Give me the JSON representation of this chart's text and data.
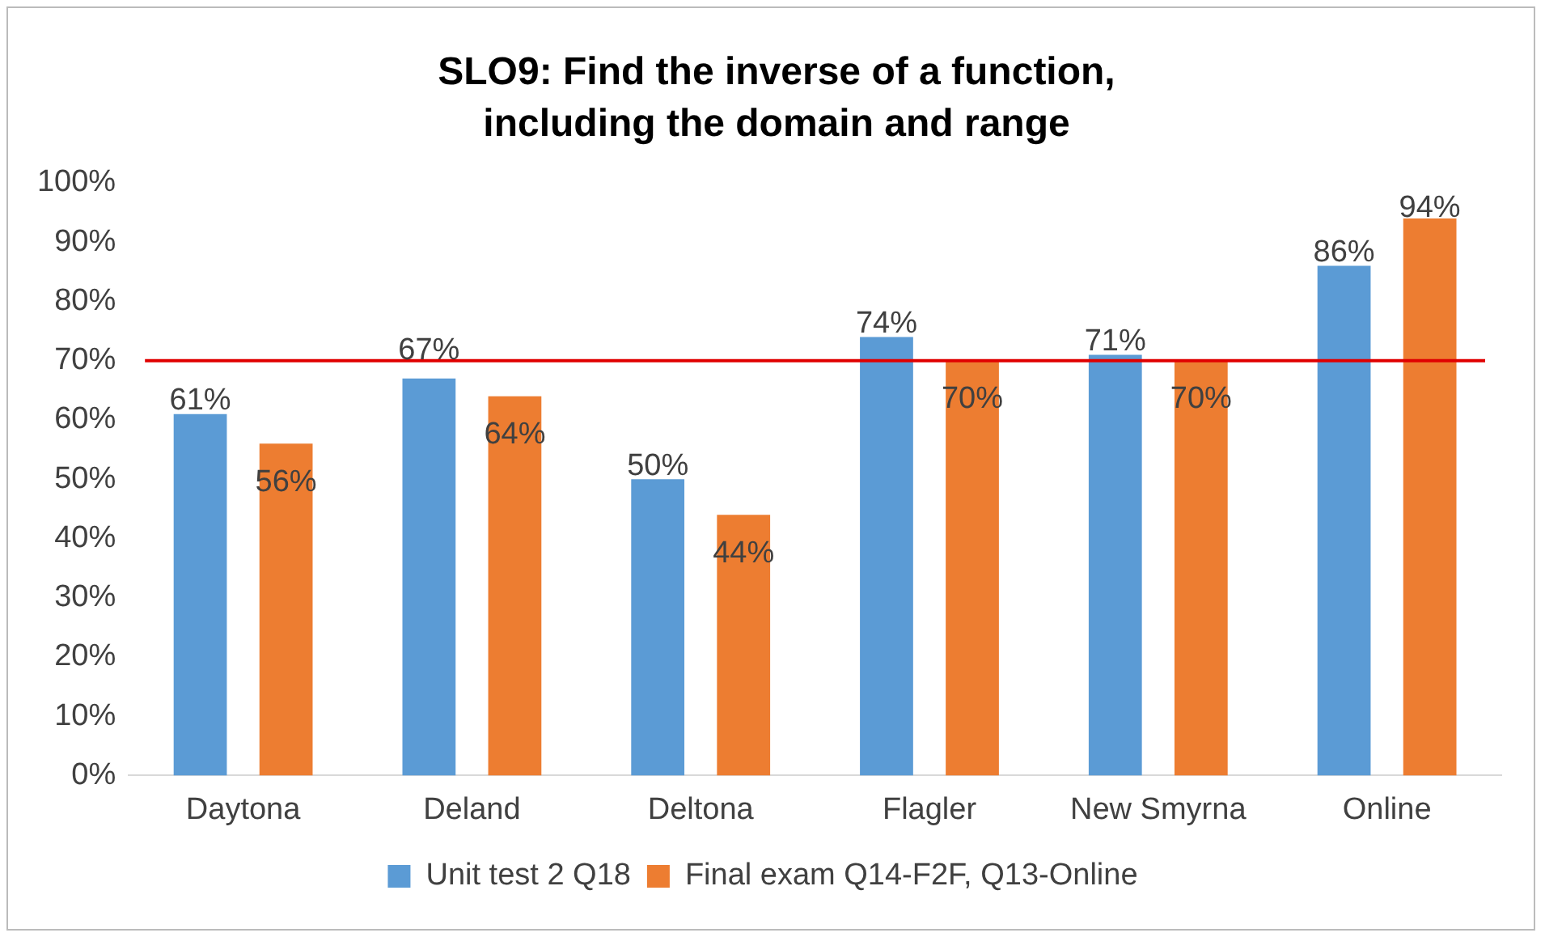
{
  "chart_data": {
    "type": "bar",
    "title": "SLO9: Find the inverse of a function, including the domain and range",
    "categories": [
      "Daytona",
      "Deland",
      "Deltona",
      "Flagler",
      "New Smyrna",
      "Online"
    ],
    "series": [
      {
        "name": "Unit test 2 Q18",
        "color": "#5b9bd5",
        "values": [
          61,
          67,
          50,
          74,
          71,
          86
        ],
        "value_labels": [
          "61%",
          "67%",
          "50%",
          "74%",
          "71%",
          "86%"
        ]
      },
      {
        "name": "Final exam Q14-F2F, Q13-Online",
        "color": "#ed7d31",
        "values": [
          56,
          64,
          44,
          70,
          70,
          94
        ],
        "value_labels": [
          "56%",
          "64%",
          "44%",
          "70%",
          "70%",
          "94%"
        ]
      }
    ],
    "ylim": [
      0,
      100
    ],
    "yticks": [
      {
        "value": 0,
        "label": "0%"
      },
      {
        "value": 10,
        "label": "10%"
      },
      {
        "value": 20,
        "label": "20%"
      },
      {
        "value": 30,
        "label": "30%"
      },
      {
        "value": 40,
        "label": "40%"
      },
      {
        "value": 50,
        "label": "50%"
      },
      {
        "value": 60,
        "label": "60%"
      },
      {
        "value": 70,
        "label": "70%"
      },
      {
        "value": 80,
        "label": "80%"
      },
      {
        "value": 90,
        "label": "90%"
      },
      {
        "value": 100,
        "label": "100%"
      }
    ],
    "ref_lines": [
      {
        "axis": "y",
        "value": 70,
        "color": "#e00000"
      }
    ],
    "grid": false,
    "legend": "bottom"
  }
}
